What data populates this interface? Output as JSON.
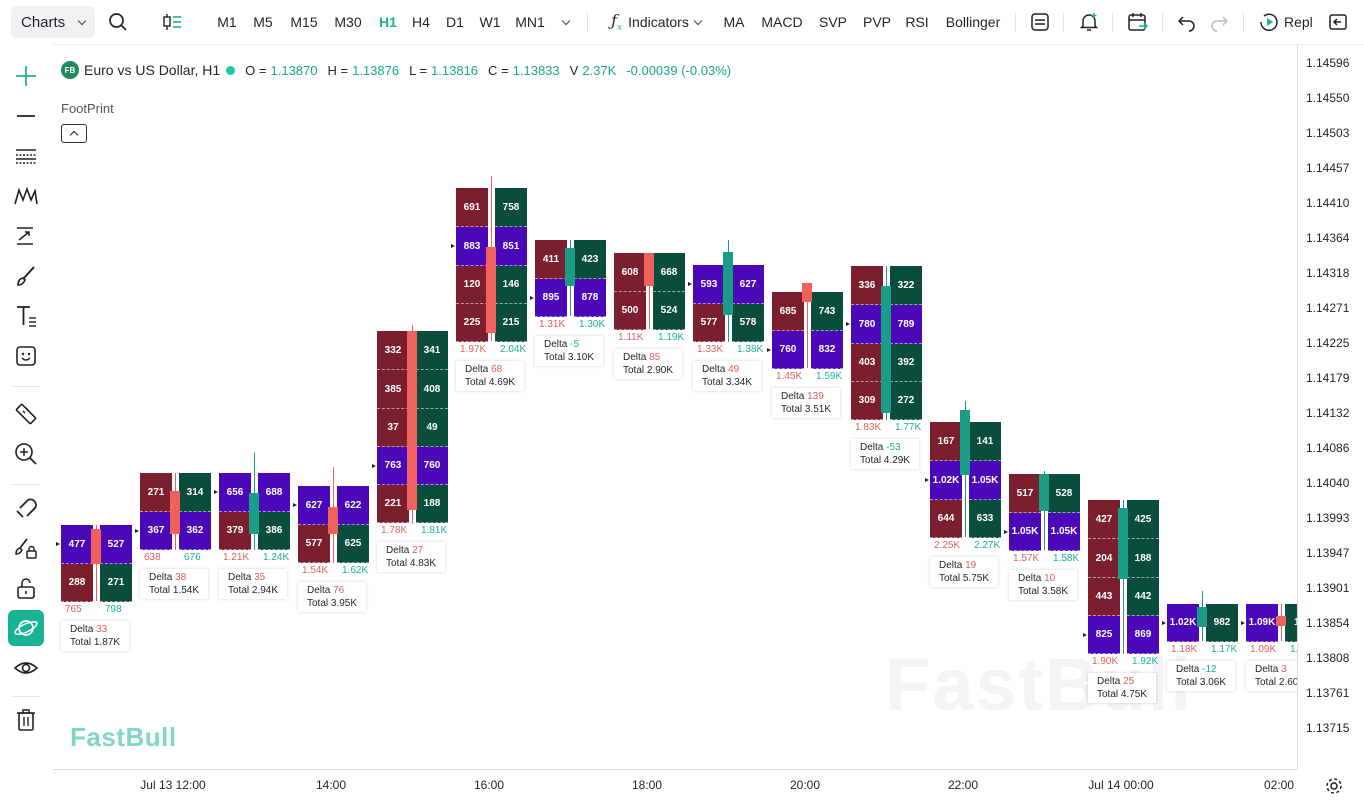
{
  "toolbar": {
    "charts_label": "Charts",
    "timeframes": [
      "M1",
      "M5",
      "M15",
      "M30",
      "H1",
      "H4",
      "D1",
      "W1",
      "MN1"
    ],
    "active_timeframe": "H1",
    "indicators_label": "Indicators",
    "quick_indicators": [
      "MA",
      "MACD",
      "SVP",
      "PVP",
      "RSI",
      "Bollinger"
    ],
    "replay_label": "Repl"
  },
  "legend": {
    "badge": "FB",
    "symbol": "Euro vs US Dollar, H1",
    "o_label": "O =",
    "o": "1.13870",
    "h_label": "H =",
    "h": "1.13876",
    "l_label": "L =",
    "l": "1.13816",
    "c_label": "C =",
    "c": "1.13833",
    "v_label": "V",
    "v": "2.37K",
    "change": "-0.00039 (-0.03%)"
  },
  "indicator_label": "FootPrint",
  "price_axis": [
    "1.14596",
    "1.14550",
    "1.14503",
    "1.14457",
    "1.14410",
    "1.14364",
    "1.14318",
    "1.14271",
    "1.14225",
    "1.14179",
    "1.14132",
    "1.14086",
    "1.14040",
    "1.13993",
    "1.13947",
    "1.13901",
    "1.13854",
    "1.13808",
    "1.13761",
    "1.13715"
  ],
  "time_axis": [
    "Jul 13 12:00",
    "14:00",
    "16:00",
    "18:00",
    "20:00",
    "22:00",
    "Jul 14 00:00",
    "02:00"
  ],
  "watermark": "FastBull",
  "brand_logo": "FastBull",
  "info_labels": {
    "delta": "Delta",
    "total": "Total"
  },
  "colors": {
    "accent": "#19b394",
    "bear_cell": "#7b1f2e",
    "bull_cell": "#0b4d3c",
    "imbalance_cell": "#4a08b8",
    "bear_candle": "#f0605d",
    "bull_candle": "#1a9c87"
  },
  "candles": [
    {
      "cells": [
        [
          "477",
          "527"
        ],
        [
          "288",
          "271"
        ]
      ],
      "bid_vol": "765",
      "ask_vol": "798",
      "delta": "33",
      "total": "1.87K"
    },
    {
      "cells": [
        [
          "271",
          "314"
        ],
        [
          "367",
          "362"
        ]
      ],
      "bid_vol": "638",
      "ask_vol": "676",
      "delta": "38",
      "total": "1.54K"
    },
    {
      "cells": [
        [
          "656",
          "688"
        ],
        [
          "379",
          "386"
        ]
      ],
      "bid_vol": "1.21K",
      "ask_vol": "1.24K",
      "delta": "35",
      "total": "2.94K"
    },
    {
      "cells": [
        [
          "627",
          "622"
        ],
        [
          "577",
          "625"
        ]
      ],
      "bid_vol": "1.54K",
      "ask_vol": "1.62K",
      "delta": "76",
      "total": "3.95K"
    },
    {
      "cells": [
        [
          "332",
          "341"
        ],
        [
          "385",
          "408"
        ],
        [
          "37",
          "49"
        ],
        [
          "763",
          "760"
        ],
        [
          "221",
          "188"
        ]
      ],
      "bid_vol": "1.78K",
      "ask_vol": "1.81K",
      "delta": "27",
      "total": "4.83K"
    },
    {
      "cells": [
        [
          "691",
          "758"
        ],
        [
          "883",
          "851"
        ],
        [
          "120",
          "146"
        ],
        [
          "225",
          "215"
        ]
      ],
      "bid_vol": "1.97K",
      "ask_vol": "2.04K",
      "delta": "68",
      "total": "4.69K"
    },
    {
      "cells": [
        [
          "411",
          "423"
        ],
        [
          "895",
          "878"
        ]
      ],
      "bid_vol": "1.31K",
      "ask_vol": "1.30K",
      "delta": "-5",
      "total": "3.10K"
    },
    {
      "cells": [
        [
          "608",
          "668"
        ],
        [
          "500",
          "524"
        ]
      ],
      "bid_vol": "1.11K",
      "ask_vol": "1.19K",
      "delta": "85",
      "total": "2.90K"
    },
    {
      "cells": [
        [
          "593",
          "627"
        ],
        [
          "577",
          "578"
        ]
      ],
      "bid_vol": "1.33K",
      "ask_vol": "1.38K",
      "delta": "49",
      "total": "3.34K"
    },
    {
      "cells": [
        [
          "685",
          "743"
        ],
        [
          "760",
          "832"
        ]
      ],
      "bid_vol": "1.45K",
      "ask_vol": "1.59K",
      "delta": "139",
      "total": "3.51K"
    },
    {
      "cells": [
        [
          "336",
          "322"
        ],
        [
          "780",
          "789"
        ],
        [
          "403",
          "392"
        ],
        [
          "309",
          "272"
        ]
      ],
      "bid_vol": "1.83K",
      "ask_vol": "1.77K",
      "delta": "-53",
      "total": "4.29K"
    },
    {
      "cells": [
        [
          "167",
          "141"
        ],
        [
          "1.02K",
          "1.05K"
        ],
        [
          "644",
          "633"
        ]
      ],
      "bid_vol": "2.25K",
      "ask_vol": "2.27K",
      "delta": "19",
      "total": "5.75K"
    },
    {
      "cells": [
        [
          "517",
          "528"
        ],
        [
          "1.05K",
          "1.05K"
        ]
      ],
      "bid_vol": "1.57K",
      "ask_vol": "1.58K",
      "delta": "10",
      "total": "3.58K"
    },
    {
      "cells": [
        [
          "427",
          "425"
        ],
        [
          "204",
          "188"
        ],
        [
          "443",
          "442"
        ],
        [
          "825",
          "869"
        ]
      ],
      "bid_vol": "1.90K",
      "ask_vol": "1.92K",
      "delta": "25",
      "total": "4.75K"
    },
    {
      "cells": [
        [
          "1.02K",
          "982"
        ]
      ],
      "bid_vol": "1.18K",
      "ask_vol": "1.17K",
      "delta": "-12",
      "total": "3.06K"
    },
    {
      "cells": [
        [
          "1.09K",
          "1.0"
        ]
      ],
      "bid_vol": "1.09K",
      "ask_vol": "1.0",
      "delta": "3",
      "total": "2.60"
    }
  ]
}
